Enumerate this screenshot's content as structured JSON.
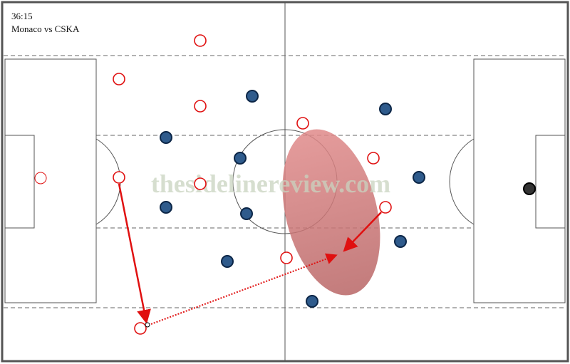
{
  "header": {
    "time": "36:15",
    "match": "Monaco vs CSKA"
  },
  "watermark": "thesidelinereview.com"
}
